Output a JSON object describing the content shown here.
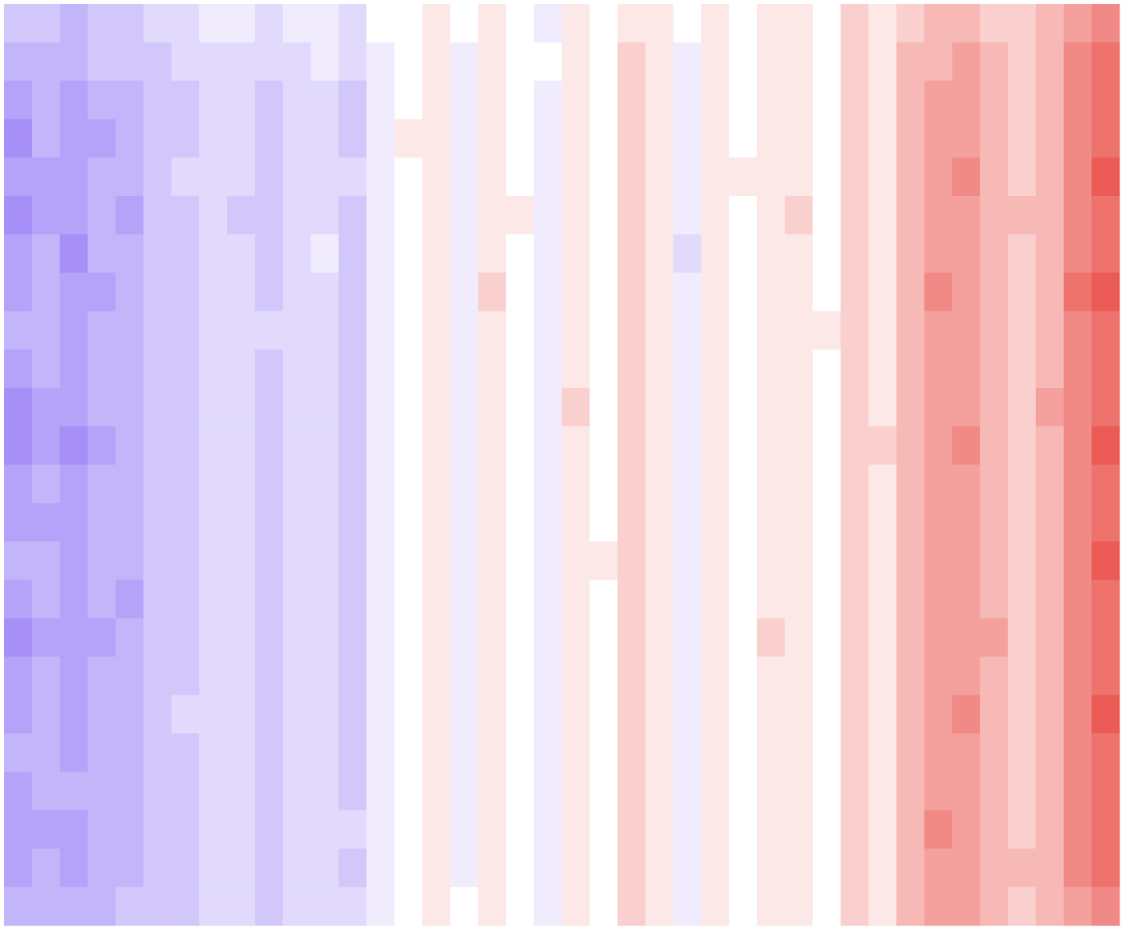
{
  "chart_data": {
    "type": "heatmap",
    "vlim": [
      -10,
      10
    ],
    "colors": [
      "#6a45f2",
      "#ffffff",
      "#e3150c"
    ],
    "z": [
      [
        -3,
        -3,
        -4,
        -3,
        -3,
        -2,
        -2,
        -1,
        -1,
        -2,
        -1,
        -1,
        -2,
        0,
        0,
        1,
        0,
        1,
        0,
        -1,
        1,
        0,
        1,
        1,
        0,
        1,
        0,
        1,
        1,
        0,
        2,
        1,
        2,
        3,
        3,
        2,
        2,
        3,
        4,
        5
      ],
      [
        -4,
        -4,
        -4,
        -3,
        -3,
        -3,
        -2,
        -2,
        -2,
        -2,
        -2,
        -1,
        -2,
        -1,
        0,
        1,
        -1,
        1,
        0,
        0,
        1,
        0,
        2,
        1,
        -1,
        1,
        0,
        1,
        1,
        0,
        2,
        1,
        3,
        3,
        4,
        3,
        2,
        3,
        5,
        6
      ],
      [
        -5,
        -4,
        -5,
        -4,
        -4,
        -3,
        -3,
        -2,
        -2,
        -3,
        -2,
        -2,
        -3,
        -1,
        0,
        1,
        -1,
        1,
        0,
        -1,
        1,
        0,
        2,
        1,
        -1,
        1,
        0,
        1,
        1,
        0,
        2,
        1,
        3,
        4,
        4,
        3,
        2,
        3,
        5,
        6
      ],
      [
        -6,
        -4,
        -5,
        -5,
        -4,
        -3,
        -3,
        -2,
        -2,
        -3,
        -2,
        -2,
        -3,
        -1,
        1,
        1,
        -1,
        1,
        0,
        -1,
        1,
        0,
        2,
        1,
        -1,
        1,
        0,
        1,
        1,
        0,
        2,
        1,
        3,
        4,
        4,
        3,
        2,
        3,
        5,
        6
      ],
      [
        -5,
        -5,
        -5,
        -4,
        -4,
        -3,
        -2,
        -2,
        -2,
        -3,
        -2,
        -2,
        -2,
        -1,
        0,
        1,
        -1,
        1,
        0,
        -1,
        1,
        0,
        2,
        1,
        -1,
        1,
        1,
        1,
        1,
        0,
        2,
        1,
        3,
        4,
        5,
        3,
        2,
        3,
        5,
        7
      ],
      [
        -6,
        -5,
        -5,
        -4,
        -5,
        -3,
        -3,
        -2,
        -3,
        -3,
        -2,
        -2,
        -3,
        -1,
        0,
        1,
        -1,
        1,
        1,
        -1,
        1,
        0,
        2,
        1,
        -1,
        1,
        0,
        1,
        2,
        0,
        2,
        1,
        3,
        4,
        4,
        3,
        3,
        3,
        5,
        6
      ],
      [
        -5,
        -4,
        -6,
        -4,
        -4,
        -3,
        -3,
        -2,
        -2,
        -3,
        -2,
        -1,
        -3,
        -1,
        0,
        1,
        -1,
        1,
        0,
        -1,
        1,
        0,
        2,
        1,
        -2,
        1,
        0,
        1,
        1,
        0,
        2,
        1,
        3,
        4,
        4,
        3,
        2,
        3,
        5,
        6
      ],
      [
        -5,
        -4,
        -5,
        -5,
        -4,
        -3,
        -3,
        -2,
        -2,
        -3,
        -2,
        -2,
        -3,
        -1,
        0,
        1,
        -1,
        2,
        0,
        -1,
        1,
        0,
        2,
        1,
        -1,
        1,
        0,
        1,
        1,
        0,
        2,
        1,
        3,
        5,
        4,
        3,
        2,
        3,
        6,
        7
      ],
      [
        -4,
        -4,
        -5,
        -4,
        -4,
        -3,
        -3,
        -2,
        -2,
        -2,
        -2,
        -2,
        -3,
        -1,
        0,
        1,
        -1,
        1,
        0,
        -1,
        1,
        0,
        2,
        1,
        -1,
        1,
        0,
        1,
        1,
        1,
        2,
        1,
        3,
        4,
        4,
        3,
        2,
        3,
        5,
        6
      ],
      [
        -5,
        -4,
        -5,
        -4,
        -4,
        -3,
        -3,
        -2,
        -2,
        -3,
        -2,
        -2,
        -3,
        -1,
        0,
        1,
        -1,
        1,
        0,
        -1,
        1,
        0,
        2,
        1,
        -1,
        1,
        0,
        1,
        1,
        0,
        2,
        1,
        3,
        4,
        4,
        3,
        2,
        3,
        5,
        6
      ],
      [
        -6,
        -5,
        -5,
        -4,
        -4,
        -3,
        -3,
        -2,
        -2,
        -3,
        -2,
        -2,
        -3,
        -1,
        0,
        1,
        -1,
        1,
        0,
        -1,
        2,
        0,
        2,
        1,
        -1,
        1,
        0,
        1,
        1,
        0,
        2,
        1,
        3,
        4,
        4,
        3,
        2,
        4,
        5,
        6
      ],
      [
        -6,
        -5,
        -6,
        -5,
        -4,
        -3,
        -3,
        -2,
        -2,
        -3,
        -2,
        -2,
        -3,
        -1,
        0,
        1,
        -1,
        1,
        0,
        -1,
        1,
        0,
        2,
        1,
        -1,
        1,
        0,
        1,
        1,
        0,
        2,
        2,
        3,
        4,
        5,
        3,
        2,
        3,
        5,
        7
      ],
      [
        -5,
        -4,
        -5,
        -4,
        -4,
        -3,
        -3,
        -2,
        -2,
        -3,
        -2,
        -2,
        -3,
        -1,
        0,
        1,
        -1,
        1,
        0,
        -1,
        1,
        0,
        2,
        1,
        -1,
        1,
        0,
        1,
        1,
        0,
        2,
        1,
        3,
        4,
        4,
        3,
        2,
        3,
        5,
        6
      ],
      [
        -5,
        -5,
        -5,
        -4,
        -4,
        -3,
        -3,
        -2,
        -2,
        -3,
        -2,
        -2,
        -3,
        -1,
        0,
        1,
        -1,
        1,
        0,
        -1,
        1,
        0,
        2,
        1,
        -1,
        1,
        0,
        1,
        1,
        0,
        2,
        1,
        3,
        4,
        4,
        3,
        2,
        3,
        5,
        6
      ],
      [
        -4,
        -4,
        -5,
        -4,
        -4,
        -3,
        -3,
        -2,
        -2,
        -3,
        -2,
        -2,
        -3,
        -1,
        0,
        1,
        -1,
        1,
        0,
        -1,
        1,
        1,
        2,
        1,
        -1,
        1,
        0,
        1,
        1,
        0,
        2,
        1,
        3,
        4,
        4,
        3,
        2,
        3,
        5,
        7
      ],
      [
        -5,
        -4,
        -5,
        -4,
        -5,
        -3,
        -3,
        -2,
        -2,
        -3,
        -2,
        -2,
        -3,
        -1,
        0,
        1,
        -1,
        1,
        0,
        -1,
        1,
        0,
        2,
        1,
        -1,
        1,
        0,
        1,
        1,
        0,
        2,
        1,
        3,
        4,
        4,
        3,
        2,
        3,
        5,
        6
      ],
      [
        -6,
        -5,
        -5,
        -5,
        -4,
        -3,
        -3,
        -2,
        -2,
        -3,
        -2,
        -2,
        -3,
        -1,
        0,
        1,
        -1,
        1,
        0,
        -1,
        1,
        0,
        2,
        1,
        -1,
        1,
        0,
        2,
        1,
        0,
        2,
        1,
        3,
        4,
        4,
        4,
        2,
        3,
        5,
        6
      ],
      [
        -5,
        -4,
        -5,
        -4,
        -4,
        -3,
        -3,
        -2,
        -2,
        -3,
        -2,
        -2,
        -3,
        -1,
        0,
        1,
        -1,
        1,
        0,
        -1,
        1,
        0,
        2,
        1,
        -1,
        1,
        0,
        1,
        1,
        0,
        2,
        1,
        3,
        4,
        4,
        3,
        2,
        3,
        5,
        6
      ],
      [
        -5,
        -4,
        -5,
        -4,
        -4,
        -3,
        -2,
        -2,
        -2,
        -3,
        -2,
        -2,
        -3,
        -1,
        0,
        1,
        -1,
        1,
        0,
        -1,
        1,
        0,
        2,
        1,
        -1,
        1,
        0,
        1,
        1,
        0,
        2,
        1,
        3,
        4,
        5,
        3,
        2,
        3,
        5,
        7
      ],
      [
        -4,
        -4,
        -5,
        -4,
        -4,
        -3,
        -3,
        -2,
        -2,
        -3,
        -2,
        -2,
        -3,
        -1,
        0,
        1,
        -1,
        1,
        0,
        -1,
        1,
        0,
        2,
        1,
        -1,
        1,
        0,
        1,
        1,
        0,
        2,
        1,
        3,
        4,
        4,
        3,
        2,
        3,
        5,
        6
      ],
      [
        -5,
        -4,
        -4,
        -4,
        -4,
        -3,
        -3,
        -2,
        -2,
        -3,
        -2,
        -2,
        -3,
        -1,
        0,
        1,
        -1,
        1,
        0,
        -1,
        1,
        0,
        2,
        1,
        -1,
        1,
        0,
        1,
        1,
        0,
        2,
        1,
        3,
        4,
        4,
        3,
        2,
        3,
        5,
        6
      ],
      [
        -5,
        -5,
        -5,
        -4,
        -4,
        -3,
        -3,
        -2,
        -2,
        -3,
        -2,
        -2,
        -2,
        -1,
        0,
        1,
        -1,
        1,
        0,
        -1,
        1,
        0,
        2,
        1,
        -1,
        1,
        0,
        1,
        1,
        0,
        2,
        1,
        3,
        5,
        4,
        3,
        2,
        3,
        5,
        6
      ],
      [
        -5,
        -4,
        -5,
        -4,
        -4,
        -3,
        -3,
        -2,
        -2,
        -3,
        -2,
        -2,
        -3,
        -1,
        0,
        1,
        -1,
        1,
        0,
        -1,
        1,
        0,
        2,
        1,
        -1,
        1,
        0,
        1,
        1,
        0,
        2,
        1,
        3,
        4,
        4,
        3,
        3,
        3,
        5,
        6
      ],
      [
        -4,
        -4,
        -4,
        -4,
        -3,
        -3,
        -3,
        -2,
        -2,
        -3,
        -2,
        -2,
        -2,
        -1,
        0,
        1,
        0,
        1,
        0,
        -1,
        1,
        0,
        2,
        1,
        -1,
        1,
        0,
        1,
        1,
        0,
        2,
        1,
        3,
        4,
        4,
        3,
        2,
        3,
        4,
        5
      ]
    ]
  }
}
